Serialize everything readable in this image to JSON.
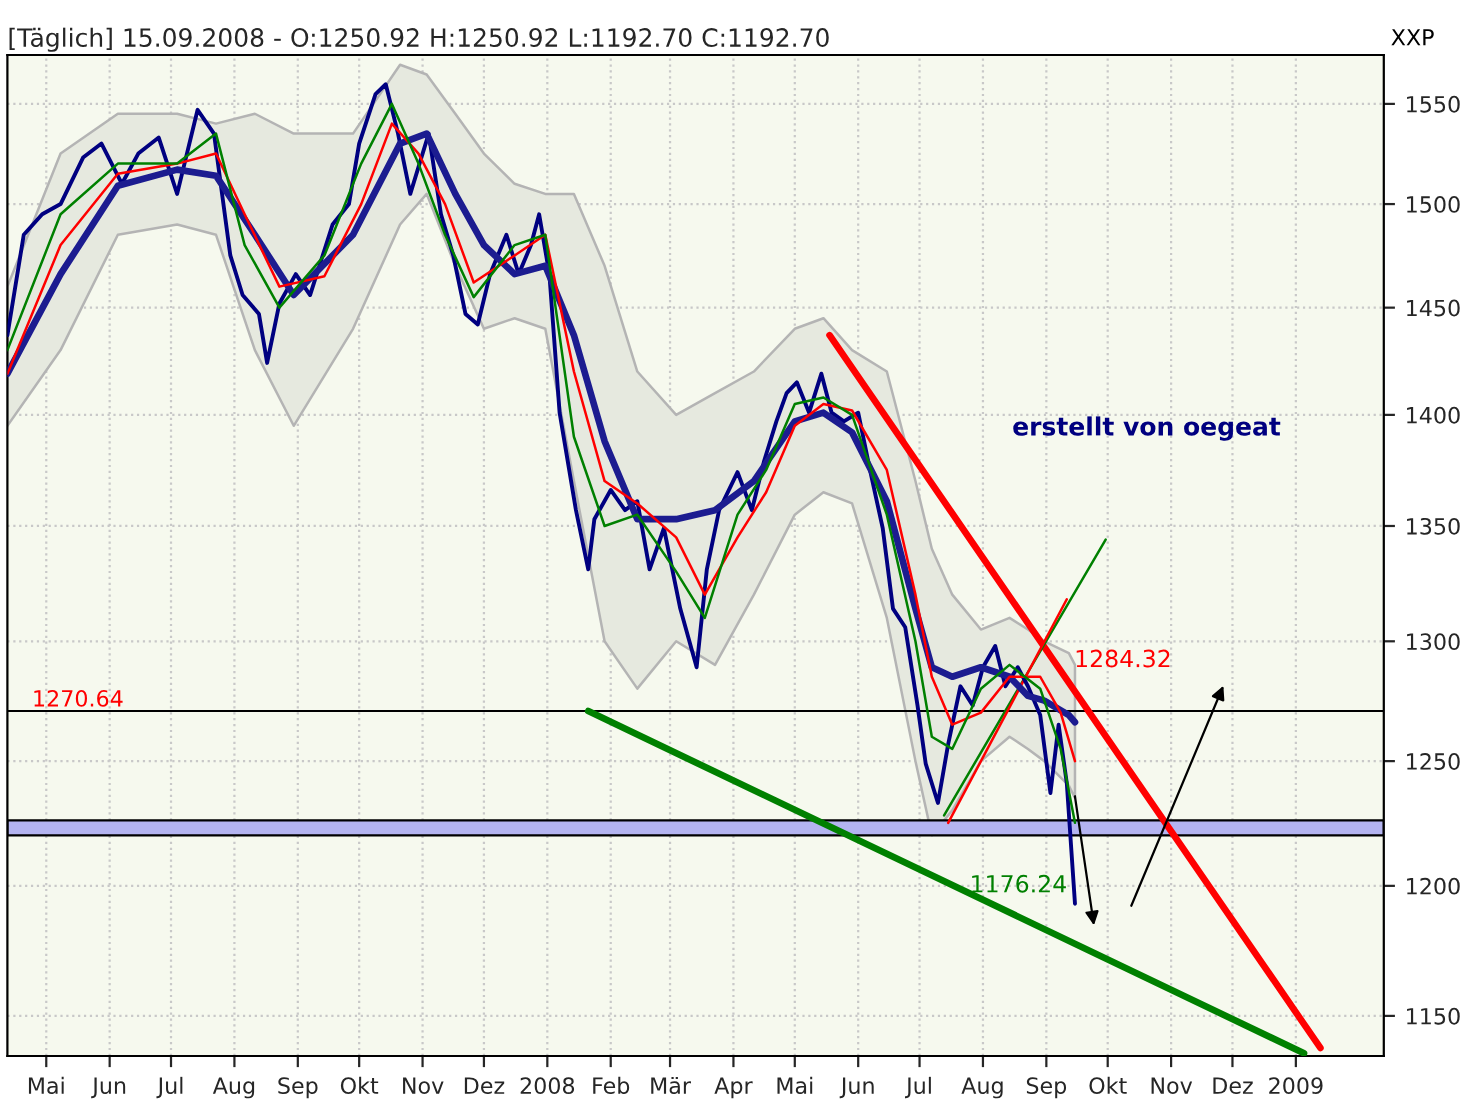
{
  "chart_data": {
    "type": "line",
    "title": "[Täglich] 15.09.2008 - O:1250.92 H:1250.92 L:1192.70 C:1192.70",
    "series": [
      {
        "type": "line",
        "color": "#000080",
        "x": [
          "2007-04-12",
          "2007-04-20",
          "2007-04-29",
          "2007-05-08",
          "2007-05-19",
          "2007-05-28",
          "2007-06-07",
          "2007-06-15",
          "2007-06-25",
          "2007-07-04",
          "2007-07-14",
          "2007-07-22",
          "2007-07-30",
          "2007-08-05",
          "2007-08-13",
          "2007-08-17",
          "2007-08-23",
          "2007-08-31",
          "2007-09-07",
          "2007-09-18",
          "2007-09-26",
          "2007-10-01",
          "2007-10-09",
          "2007-10-14",
          "2007-10-20",
          "2007-10-26",
          "2007-11-04",
          "2007-11-10",
          "2007-11-16",
          "2007-11-22",
          "2007-11-28",
          "2007-12-04",
          "2007-12-12",
          "2007-12-18",
          "2007-12-24",
          "2007-12-28",
          "2008-01-02",
          "2008-01-07",
          "2008-01-15",
          "2008-01-21",
          "2008-01-24",
          "2008-02-01",
          "2008-02-08",
          "2008-02-14",
          "2008-02-20",
          "2008-02-27",
          "2008-03-06",
          "2008-03-14",
          "2008-03-19",
          "2008-03-25",
          "2008-04-03",
          "2008-04-10",
          "2008-04-16",
          "2008-04-22",
          "2008-04-27",
          "2008-05-02",
          "2008-05-08",
          "2008-05-14",
          "2008-05-19",
          "2008-05-25",
          "2008-06-01",
          "2008-06-07",
          "2008-06-13",
          "2008-06-18",
          "2008-06-24",
          "2008-06-30",
          "2008-07-04",
          "2008-07-10",
          "2008-07-15",
          "2008-07-21",
          "2008-07-27",
          "2008-08-01",
          "2008-08-07",
          "2008-08-12",
          "2008-08-18",
          "2008-08-23",
          "2008-08-29",
          "2008-09-03",
          "2008-09-07",
          "2008-09-11",
          "2008-09-15"
        ],
        "values": [
          1437,
          1485,
          1495,
          1500,
          1523,
          1530,
          1510,
          1525,
          1533,
          1505,
          1547,
          1535,
          1475,
          1456,
          1447,
          1424,
          1452,
          1466,
          1456,
          1490,
          1500,
          1530,
          1555,
          1560,
          1535,
          1505,
          1535,
          1495,
          1475,
          1447,
          1442,
          1466,
          1485,
          1466,
          1480,
          1495,
          1466,
          1401,
          1357,
          1331,
          1353,
          1366,
          1357,
          1361,
          1331,
          1349,
          1314,
          1289,
          1331,
          1357,
          1374,
          1357,
          1379,
          1397,
          1410,
          1415,
          1401,
          1419,
          1401,
          1397,
          1401,
          1374,
          1349,
          1314,
          1306,
          1273,
          1249,
          1233,
          1257,
          1281,
          1273,
          1289,
          1298,
          1281,
          1289,
          1281,
          1269,
          1237,
          1265,
          1241,
          1193
        ]
      },
      {
        "type": "line",
        "color": "#1c1c90",
        "x": [
          "2007-04-12",
          "2007-05-08",
          "2007-06-05",
          "2007-07-04",
          "2007-07-23",
          "2007-08-11",
          "2007-08-30",
          "2007-09-28",
          "2007-10-21",
          "2007-11-03",
          "2007-11-17",
          "2007-12-01",
          "2007-12-16",
          "2007-12-31",
          "2008-01-14",
          "2008-01-29",
          "2008-02-14",
          "2008-03-04",
          "2008-03-23",
          "2008-04-11",
          "2008-05-01",
          "2008-05-15",
          "2008-05-29",
          "2008-06-15",
          "2008-06-29",
          "2008-07-07",
          "2008-07-17",
          "2008-07-31",
          "2008-08-14",
          "2008-08-23",
          "2008-08-31",
          "2008-09-12",
          "2008-09-15"
        ],
        "values": [
          1419,
          1466,
          1509,
          1517,
          1514,
          1485,
          1456,
          1485,
          1530,
          1535,
          1505,
          1480,
          1466,
          1470,
          1437,
          1388,
          1353,
          1353,
          1357,
          1370,
          1397,
          1401,
          1392,
          1361,
          1314,
          1289,
          1285,
          1289,
          1285,
          1277,
          1275,
          1269,
          1266
        ],
        "upper": [
          1460,
          1525,
          1545,
          1545,
          1540,
          1545,
          1535,
          1535,
          1570,
          1565,
          1545,
          1525,
          1510,
          1505,
          1505,
          1470,
          1420,
          1400,
          1410,
          1420,
          1440,
          1445,
          1430,
          1420,
          1370,
          1340,
          1320,
          1305,
          1310,
          1305,
          1300,
          1295,
          1290
        ],
        "lower": [
          1395,
          1430,
          1485,
          1490,
          1485,
          1430,
          1395,
          1440,
          1490,
          1505,
          1470,
          1440,
          1445,
          1440,
          1370,
          1300,
          1280,
          1300,
          1290,
          1320,
          1355,
          1365,
          1360,
          1310,
          1250,
          1220,
          1230,
          1250,
          1260,
          1255,
          1250,
          1240,
          1235
        ]
      },
      {
        "type": "line",
        "color": "#ff0000",
        "x": [
          "2007-04-12",
          "2007-05-08",
          "2007-06-05",
          "2007-07-04",
          "2007-07-23",
          "2007-08-06",
          "2007-08-23",
          "2007-09-14",
          "2007-10-02",
          "2007-10-17",
          "2007-10-30",
          "2007-11-12",
          "2007-11-26",
          "2007-12-16",
          "2007-12-31",
          "2008-01-14",
          "2008-01-29",
          "2008-02-14",
          "2008-03-04",
          "2008-03-18",
          "2008-04-03",
          "2008-04-17",
          "2008-05-01",
          "2008-05-15",
          "2008-05-29",
          "2008-06-15",
          "2008-06-29",
          "2008-07-07",
          "2008-07-17",
          "2008-07-31",
          "2008-08-14",
          "2008-08-29",
          "2008-09-08",
          "2008-09-15"
        ],
        "values": [
          1419,
          1480,
          1515,
          1520,
          1525,
          1495,
          1460,
          1465,
          1500,
          1540,
          1525,
          1500,
          1462,
          1475,
          1485,
          1420,
          1370,
          1360,
          1345,
          1320,
          1345,
          1365,
          1395,
          1405,
          1402,
          1375,
          1320,
          1285,
          1265,
          1270,
          1285,
          1285,
          1270,
          1250
        ]
      },
      {
        "type": "line",
        "color": "#008000",
        "x": [
          "2007-04-12",
          "2007-05-08",
          "2007-06-05",
          "2007-07-04",
          "2007-07-23",
          "2007-08-06",
          "2007-08-23",
          "2007-09-14",
          "2007-10-02",
          "2007-10-17",
          "2007-10-30",
          "2007-11-12",
          "2007-11-26",
          "2007-12-16",
          "2007-12-31",
          "2008-01-14",
          "2008-01-29",
          "2008-02-14",
          "2008-03-04",
          "2008-03-18",
          "2008-04-03",
          "2008-04-17",
          "2008-05-01",
          "2008-05-15",
          "2008-05-29",
          "2008-06-15",
          "2008-06-29",
          "2008-07-07",
          "2008-07-17",
          "2008-07-31",
          "2008-08-14",
          "2008-08-29",
          "2008-09-08",
          "2008-09-15"
        ],
        "values": [
          1430,
          1495,
          1520,
          1520,
          1535,
          1480,
          1450,
          1475,
          1520,
          1550,
          1520,
          1485,
          1455,
          1480,
          1485,
          1390,
          1350,
          1355,
          1330,
          1310,
          1355,
          1375,
          1405,
          1408,
          1400,
          1355,
          1300,
          1260,
          1255,
          1280,
          1290,
          1280,
          1255,
          1225
        ]
      },
      {
        "type": "line",
        "color": "#008000",
        "x": [
          "2008-01-21",
          "2009-01-05"
        ],
        "values": [
          1270.64,
          1136
        ]
      },
      {
        "type": "line",
        "color": "#ff0000",
        "x": [
          "2008-05-18",
          "2009-01-13"
        ],
        "values": [
          1437,
          1138
        ]
      },
      {
        "type": "line",
        "color": "#008000",
        "x": [
          "2008-07-13",
          "2008-09-30"
        ],
        "values": [
          1228,
          1344
        ]
      },
      {
        "type": "line",
        "color": "#ff0000",
        "x": [
          "2008-07-15",
          "2008-09-11"
        ],
        "values": [
          1225,
          1318
        ]
      }
    ],
    "ref_lines": [
      {
        "axis": "y",
        "value": 1270.64,
        "label": "1270.64",
        "color": "#000000"
      }
    ],
    "bands": [
      {
        "axis": "y",
        "from": 1220,
        "to": 1226,
        "color": "#b4b4f0"
      }
    ],
    "annotations": [
      "erstellt von oegeat",
      "XXP",
      "1284.32",
      "1176.24"
    ],
    "xlim": [
      "2007-04-12",
      "2009-02-13"
    ],
    "xticks": [
      {
        "value": "2007-05-01",
        "label": "Mai"
      },
      {
        "value": "2007-06-01",
        "label": "Jun"
      },
      {
        "value": "2007-07-01",
        "label": "Jul"
      },
      {
        "value": "2007-08-01",
        "label": "Aug"
      },
      {
        "value": "2007-09-01",
        "label": "Sep"
      },
      {
        "value": "2007-10-01",
        "label": "Okt"
      },
      {
        "value": "2007-11-01",
        "label": "Nov"
      },
      {
        "value": "2007-12-01",
        "label": "Dez"
      },
      {
        "value": "2008-01-01",
        "label": "2008"
      },
      {
        "value": "2008-02-01",
        "label": "Feb"
      },
      {
        "value": "2008-03-01",
        "label": "Mär"
      },
      {
        "value": "2008-04-01",
        "label": "Apr"
      },
      {
        "value": "2008-05-01",
        "label": "Mai"
      },
      {
        "value": "2008-06-01",
        "label": "Jun"
      },
      {
        "value": "2008-07-01",
        "label": "Jul"
      },
      {
        "value": "2008-08-01",
        "label": "Aug"
      },
      {
        "value": "2008-09-01",
        "label": "Sep"
      },
      {
        "value": "2008-10-01",
        "label": "Okt"
      },
      {
        "value": "2008-11-01",
        "label": "Nov"
      },
      {
        "value": "2008-12-01",
        "label": "Dez"
      },
      {
        "value": "2009-01-01",
        "label": "2009"
      }
    ],
    "ylim": [
      1135,
      1575
    ],
    "yticks": [
      1150,
      1200,
      1250,
      1300,
      1350,
      1400,
      1450,
      1500,
      1550
    ],
    "log": "y",
    "grid": true,
    "marker": "none",
    "line_style": "solid"
  }
}
